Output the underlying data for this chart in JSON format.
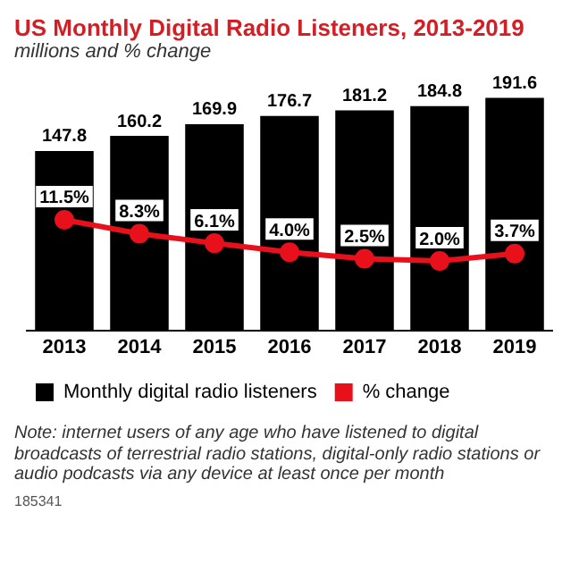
{
  "chart_data": {
    "type": "bar",
    "title": "US Monthly Digital Radio Listeners, 2013-2019",
    "subtitle": "millions and % change",
    "categories": [
      "2013",
      "2014",
      "2015",
      "2016",
      "2017",
      "2018",
      "2019"
    ],
    "series": [
      {
        "name": "Monthly digital radio listeners",
        "color": "#000000",
        "values": [
          147.8,
          160.2,
          169.9,
          176.7,
          181.2,
          184.8,
          191.6
        ],
        "value_labels": [
          "147.8",
          "160.2",
          "169.9",
          "176.7",
          "181.2",
          "184.8",
          "191.6"
        ]
      },
      {
        "name": "% change",
        "type": "line",
        "axis": "y2",
        "color": "#e8101a",
        "values": [
          11.5,
          8.3,
          6.1,
          4.0,
          2.5,
          2.0,
          3.7
        ],
        "value_labels": [
          "11.5%",
          "8.3%",
          "6.1%",
          "4.0%",
          "2.5%",
          "2.0%",
          "3.7%"
        ]
      }
    ],
    "legend": "bottom",
    "marker": "circle",
    "line_style": "solid",
    "grid": false,
    "annotations": [
      "Note: internet users of any age who have listened to digital broadcasts of terrestrial radio stations, digital-only radio stations or audio podcasts via any device at least once per month",
      "185341"
    ]
  }
}
